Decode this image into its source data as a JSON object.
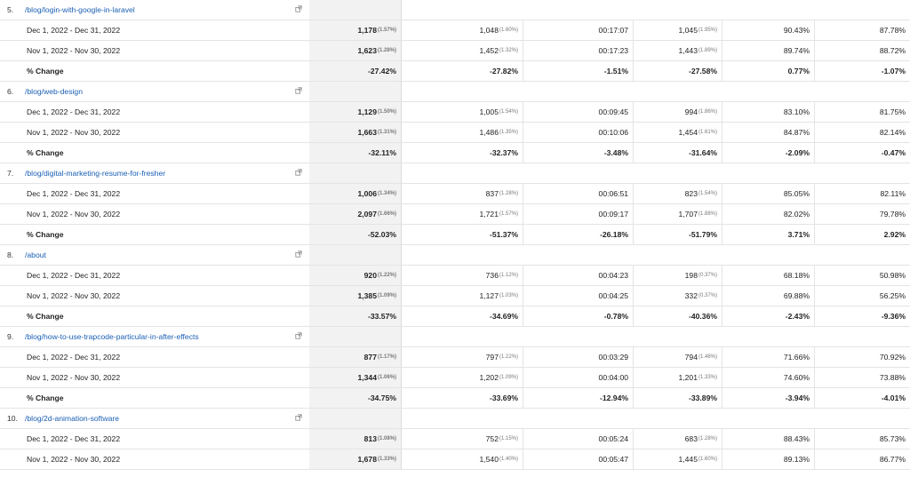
{
  "groups": [
    {
      "num": "5.",
      "page": "/blog/login-with-google-in-laravel",
      "rows": [
        {
          "label": "Dec 1, 2022 - Dec 31, 2022",
          "c1": "1,178",
          "c1p": "(1.57%)",
          "c2": "1,048",
          "c2p": "(1.60%)",
          "c3": "00:17:07",
          "c4": "1,045",
          "c4p": "(1.95%)",
          "c5": "90.43%",
          "c6": "87.78%"
        },
        {
          "label": "Nov 1, 2022 - Nov 30, 2022",
          "c1": "1,623",
          "c1p": "(1.28%)",
          "c2": "1,452",
          "c2p": "(1.32%)",
          "c3": "00:17:23",
          "c4": "1,443",
          "c4p": "(1.89%)",
          "c5": "89.74%",
          "c6": "88.72%"
        },
        {
          "label": "% Change",
          "c1": "-27.42%",
          "c1p": "",
          "c2": "-27.82%",
          "c2p": "",
          "c3": "-1.51%",
          "c4": "-27.58%",
          "c4p": "",
          "c5": "0.77%",
          "c6": "-1.07%"
        }
      ]
    },
    {
      "num": "6.",
      "page": "/blog/web-design",
      "rows": [
        {
          "label": "Dec 1, 2022 - Dec 31, 2022",
          "c1": "1,129",
          "c1p": "(1.50%)",
          "c2": "1,005",
          "c2p": "(1.54%)",
          "c3": "00:09:45",
          "c4": "994",
          "c4p": "(1.86%)",
          "c5": "83.10%",
          "c6": "81.75%"
        },
        {
          "label": "Nov 1, 2022 - Nov 30, 2022",
          "c1": "1,663",
          "c1p": "(1.31%)",
          "c2": "1,486",
          "c2p": "(1.35%)",
          "c3": "00:10:06",
          "c4": "1,454",
          "c4p": "(1.61%)",
          "c5": "84.87%",
          "c6": "82.14%"
        },
        {
          "label": "% Change",
          "c1": "-32.11%",
          "c1p": "",
          "c2": "-32.37%",
          "c2p": "",
          "c3": "-3.48%",
          "c4": "-31.64%",
          "c4p": "",
          "c5": "-2.09%",
          "c6": "-0.47%"
        }
      ]
    },
    {
      "num": "7.",
      "page": "/blog/digital-marketing-resume-for-fresher",
      "rows": [
        {
          "label": "Dec 1, 2022 - Dec 31, 2022",
          "c1": "1,006",
          "c1p": "(1.34%)",
          "c2": "837",
          "c2p": "(1.28%)",
          "c3": "00:06:51",
          "c4": "823",
          "c4p": "(1.54%)",
          "c5": "85.05%",
          "c6": "82.11%"
        },
        {
          "label": "Nov 1, 2022 - Nov 30, 2022",
          "c1": "2,097",
          "c1p": "(1.66%)",
          "c2": "1,721",
          "c2p": "(1.57%)",
          "c3": "00:09:17",
          "c4": "1,707",
          "c4p": "(1.88%)",
          "c5": "82.02%",
          "c6": "79.78%"
        },
        {
          "label": "% Change",
          "c1": "-52.03%",
          "c1p": "",
          "c2": "-51.37%",
          "c2p": "",
          "c3": "-26.18%",
          "c4": "-51.79%",
          "c4p": "",
          "c5": "3.71%",
          "c6": "2.92%"
        }
      ]
    },
    {
      "num": "8.",
      "page": "/about",
      "rows": [
        {
          "label": "Dec 1, 2022 - Dec 31, 2022",
          "c1": "920",
          "c1p": "(1.22%)",
          "c2": "736",
          "c2p": "(1.12%)",
          "c3": "00:04:23",
          "c4": "198",
          "c4p": "(0.37%)",
          "c5": "68.18%",
          "c6": "50.98%"
        },
        {
          "label": "Nov 1, 2022 - Nov 30, 2022",
          "c1": "1,385",
          "c1p": "(1.09%)",
          "c2": "1,127",
          "c2p": "(1.03%)",
          "c3": "00:04:25",
          "c4": "332",
          "c4p": "(0.37%)",
          "c5": "69.88%",
          "c6": "56.25%"
        },
        {
          "label": "% Change",
          "c1": "-33.57%",
          "c1p": "",
          "c2": "-34.69%",
          "c2p": "",
          "c3": "-0.78%",
          "c4": "-40.36%",
          "c4p": "",
          "c5": "-2.43%",
          "c6": "-9.36%"
        }
      ]
    },
    {
      "num": "9.",
      "page": "/blog/how-to-use-trapcode-particular-in-after-effects",
      "rows": [
        {
          "label": "Dec 1, 2022 - Dec 31, 2022",
          "c1": "877",
          "c1p": "(1.17%)",
          "c2": "797",
          "c2p": "(1.22%)",
          "c3": "00:03:29",
          "c4": "794",
          "c4p": "(1.48%)",
          "c5": "71.66%",
          "c6": "70.92%"
        },
        {
          "label": "Nov 1, 2022 - Nov 30, 2022",
          "c1": "1,344",
          "c1p": "(1.06%)",
          "c2": "1,202",
          "c2p": "(1.09%)",
          "c3": "00:04:00",
          "c4": "1,201",
          "c4p": "(1.33%)",
          "c5": "74.60%",
          "c6": "73.88%"
        },
        {
          "label": "% Change",
          "c1": "-34.75%",
          "c1p": "",
          "c2": "-33.69%",
          "c2p": "",
          "c3": "-12.94%",
          "c4": "-33.89%",
          "c4p": "",
          "c5": "-3.94%",
          "c6": "-4.01%"
        }
      ]
    },
    {
      "num": "10.",
      "page": "/blog/2d-animation-software",
      "rows": [
        {
          "label": "Dec 1, 2022 - Dec 31, 2022",
          "c1": "813",
          "c1p": "(1.08%)",
          "c2": "752",
          "c2p": "(1.15%)",
          "c3": "00:05:24",
          "c4": "683",
          "c4p": "(1.28%)",
          "c5": "88.43%",
          "c6": "85.73%"
        },
        {
          "label": "Nov 1, 2022 - Nov 30, 2022",
          "c1": "1,678",
          "c1p": "(1.33%)",
          "c2": "1,540",
          "c2p": "(1.40%)",
          "c3": "00:05:47",
          "c4": "1,445",
          "c4p": "(1.60%)",
          "c5": "89.13%",
          "c6": "86.77%"
        }
      ]
    }
  ],
  "icons": {
    "page_link": "open-in-new-icon"
  },
  "colors": {
    "link": "#1a5fb4",
    "highlight_column": "#f2f2f2"
  }
}
